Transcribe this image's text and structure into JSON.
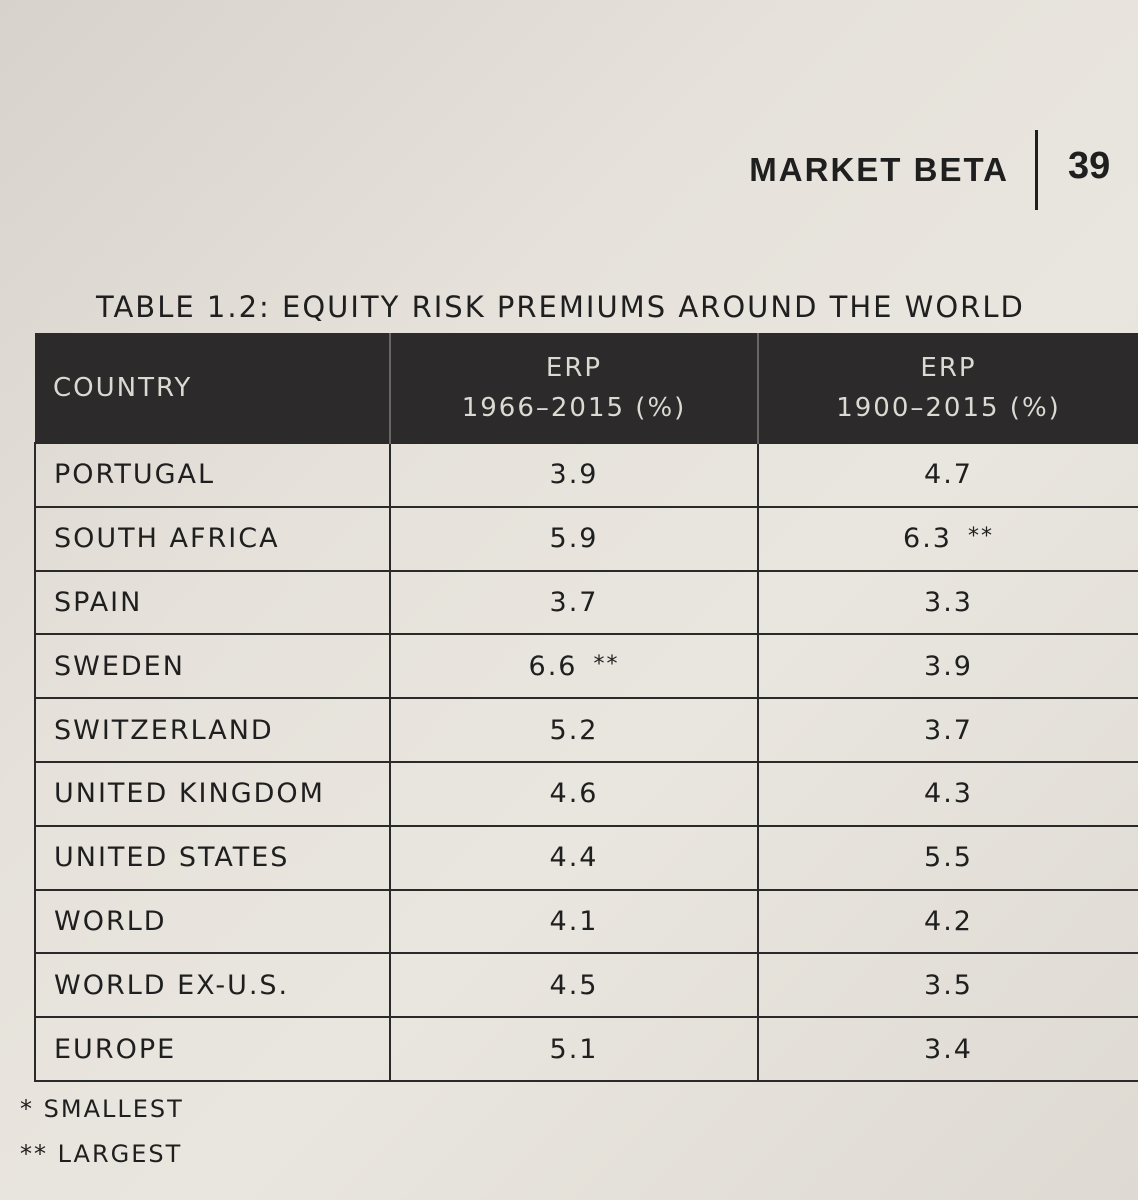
{
  "header": {
    "section_title": "MARKET BETA",
    "page_number": "39"
  },
  "table": {
    "title": "TABLE 1.2: EQUITY RISK PREMIUMS AROUND THE WORLD",
    "columns": {
      "country": "COUNTRY",
      "erp1_line1": "ERP",
      "erp1_line2": "1966–2015 (%)",
      "erp2_line1": "ERP",
      "erp2_line2": "1900–2015 (%)"
    },
    "rows": [
      {
        "country": "PORTUGAL",
        "erp_1966_2015": "3.9",
        "erp_1966_2015_mark": "",
        "erp_1900_2015": "4.7",
        "erp_1900_2015_mark": ""
      },
      {
        "country": "SOUTH AFRICA",
        "erp_1966_2015": "5.9",
        "erp_1966_2015_mark": "",
        "erp_1900_2015": "6.3",
        "erp_1900_2015_mark": "**"
      },
      {
        "country": "SPAIN",
        "erp_1966_2015": "3.7",
        "erp_1966_2015_mark": "",
        "erp_1900_2015": "3.3",
        "erp_1900_2015_mark": ""
      },
      {
        "country": "SWEDEN",
        "erp_1966_2015": "6.6",
        "erp_1966_2015_mark": "**",
        "erp_1900_2015": "3.9",
        "erp_1900_2015_mark": ""
      },
      {
        "country": "SWITZERLAND",
        "erp_1966_2015": "5.2",
        "erp_1966_2015_mark": "",
        "erp_1900_2015": "3.7",
        "erp_1900_2015_mark": ""
      },
      {
        "country": "UNITED KINGDOM",
        "erp_1966_2015": "4.6",
        "erp_1966_2015_mark": "",
        "erp_1900_2015": "4.3",
        "erp_1900_2015_mark": ""
      },
      {
        "country": "UNITED STATES",
        "erp_1966_2015": "4.4",
        "erp_1966_2015_mark": "",
        "erp_1900_2015": "5.5",
        "erp_1900_2015_mark": ""
      },
      {
        "country": "WORLD",
        "erp_1966_2015": "4.1",
        "erp_1966_2015_mark": "",
        "erp_1900_2015": "4.2",
        "erp_1900_2015_mark": ""
      },
      {
        "country": "WORLD EX-U.S.",
        "erp_1966_2015": "4.5",
        "erp_1966_2015_mark": "",
        "erp_1900_2015": "3.5",
        "erp_1900_2015_mark": ""
      },
      {
        "country": "EUROPE",
        "erp_1966_2015": "5.1",
        "erp_1966_2015_mark": "",
        "erp_1900_2015": "3.4",
        "erp_1900_2015_mark": ""
      }
    ]
  },
  "legend": {
    "smallest": "* SMALLEST",
    "largest": "** LARGEST"
  }
}
